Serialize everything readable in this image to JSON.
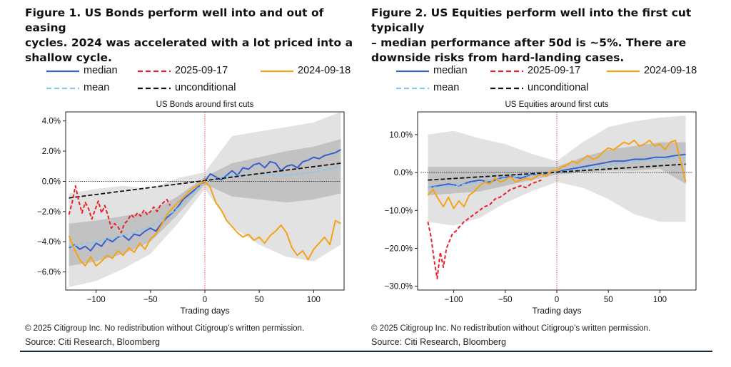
{
  "figures": [
    {
      "title_lines": [
        "Figure 1. US Bonds perform well into and out of easing",
        "cycles. 2024 was accelerated with a lot priced into a",
        "shallow cycle."
      ],
      "legend": [
        {
          "label": "median",
          "color": "#3a5fcd",
          "dash": "solid"
        },
        {
          "label": "2025-09-17",
          "color": "#e8202a",
          "dash": "dashed"
        },
        {
          "label": "2024-09-18",
          "color": "#f5a316",
          "dash": "solid"
        },
        {
          "label": "mean",
          "color": "#87c8ef",
          "dash": "dashed"
        },
        {
          "label": "unconditional",
          "color": "#111111",
          "dash": "dashed"
        }
      ],
      "copyright": "© 2025 Citigroup Inc. No redistribution without Citigroup’s written permission.",
      "source": "Source: Citi Research, Bloomberg"
    },
    {
      "title_lines": [
        "Figure 2. US Equities perform well into the first cut typically",
        "– median performance after 50d is ~5%. There are",
        "downside risks from hard-landing cases."
      ],
      "legend": [
        {
          "label": "median",
          "color": "#3a5fcd",
          "dash": "solid"
        },
        {
          "label": "2025-09-17",
          "color": "#e8202a",
          "dash": "dashed"
        },
        {
          "label": "2024-09-18",
          "color": "#f5a316",
          "dash": "solid"
        },
        {
          "label": "mean",
          "color": "#87c8ef",
          "dash": "dashed"
        },
        {
          "label": "unconditional",
          "color": "#111111",
          "dash": "dashed"
        }
      ],
      "copyright": "© 2025 Citigroup Inc. No redistribution without Citigroup’s written permission.",
      "source": "Source: Citi Research, Bloomberg"
    }
  ],
  "chart_data": [
    {
      "type": "line",
      "title": "US Bonds around first cuts",
      "xlabel": "Trading days",
      "ylabel": "",
      "xlim": [
        -128,
        128
      ],
      "ylim": [
        -7.2,
        4.6
      ],
      "xticks": [
        -100,
        -50,
        0,
        50,
        100
      ],
      "xtick_labels": [
        "−100",
        "−50",
        "0",
        "50",
        "100"
      ],
      "yticks": [
        4,
        2,
        0,
        -2,
        -4,
        -6
      ],
      "ytick_labels": [
        "4.0%",
        "2.0%",
        "0.0%",
        "−2.0%",
        "−4.0%",
        "−6.0%"
      ],
      "vline_x": 0,
      "zero_line": true,
      "outer_band": {
        "x": [
          -125,
          -100,
          -75,
          -50,
          -25,
          0,
          25,
          50,
          75,
          100,
          125
        ],
        "lower": [
          -7.0,
          -6.6,
          -5.8,
          -4.8,
          -2.8,
          -0.5,
          -3.0,
          -4.2,
          -5.0,
          -5.3,
          -4.2
        ],
        "upper": [
          -0.8,
          -0.5,
          -0.3,
          -0.5,
          0.2,
          0.6,
          3.0,
          3.3,
          3.6,
          3.9,
          4.6
        ]
      },
      "inner_band": {
        "x": [
          -125,
          -100,
          -75,
          -50,
          -25,
          0,
          25,
          50,
          75,
          100,
          125
        ],
        "lower": [
          -5.6,
          -5.3,
          -4.8,
          -4.0,
          -2.2,
          -0.2,
          -1.0,
          -1.2,
          -1.4,
          -1.2,
          -0.8
        ],
        "upper": [
          -2.8,
          -2.6,
          -2.3,
          -2.0,
          -1.0,
          0.3,
          1.2,
          1.6,
          2.0,
          2.3,
          2.8
        ]
      },
      "series": [
        {
          "name": "median",
          "color": "#3a5fcd",
          "dash": "solid",
          "x": [
            -125,
            -120,
            -115,
            -110,
            -105,
            -100,
            -95,
            -90,
            -85,
            -80,
            -75,
            -70,
            -65,
            -60,
            -55,
            -50,
            -45,
            -40,
            -35,
            -30,
            -25,
            -20,
            -15,
            -10,
            -5,
            0,
            5,
            10,
            15,
            20,
            25,
            30,
            35,
            40,
            45,
            50,
            55,
            60,
            65,
            70,
            75,
            80,
            85,
            90,
            95,
            100,
            105,
            110,
            115,
            120,
            125
          ],
          "y": [
            -4.4,
            -4.2,
            -4.5,
            -4.3,
            -4.6,
            -4.1,
            -4.3,
            -3.8,
            -4.0,
            -3.7,
            -3.6,
            -3.9,
            -3.5,
            -3.6,
            -3.3,
            -3.1,
            -3.3,
            -2.8,
            -2.4,
            -2.1,
            -1.7,
            -1.2,
            -0.9,
            -0.6,
            -0.3,
            0.0,
            0.5,
            0.3,
            0.1,
            0.4,
            0.7,
            0.4,
            0.9,
            0.8,
            1.1,
            1.2,
            0.9,
            1.3,
            1.2,
            0.7,
            1.0,
            1.1,
            0.9,
            1.3,
            1.4,
            1.6,
            1.5,
            1.7,
            1.8,
            1.9,
            2.1
          ]
        },
        {
          "name": "mean",
          "color": "#87c8ef",
          "dash": "dashed",
          "x": [
            -125,
            -100,
            -75,
            -50,
            -25,
            0,
            25,
            50,
            75,
            100,
            125
          ],
          "y": [
            -4.3,
            -4.0,
            -3.6,
            -3.0,
            -1.8,
            0.0,
            0.4,
            0.5,
            0.4,
            0.6,
            1.0
          ]
        },
        {
          "name": "unconditional",
          "color": "#111111",
          "dash": "dashed",
          "x": [
            -125,
            125
          ],
          "y": [
            -1.1,
            1.2
          ]
        },
        {
          "name": "2025-09-17",
          "color": "#e8202a",
          "dash": "dashed",
          "x": [
            -125,
            -122,
            -119,
            -116,
            -113,
            -110,
            -107,
            -104,
            -101,
            -98,
            -95,
            -92,
            -89,
            -86,
            -83,
            -80,
            -77,
            -74,
            -71,
            -68,
            -65,
            -62,
            -59,
            -56,
            -53,
            -50,
            -47,
            -44,
            -41,
            -38,
            -35,
            -32
          ],
          "y": [
            -2.2,
            -1.4,
            -0.3,
            -1.3,
            -2.1,
            -1.4,
            -1.8,
            -2.5,
            -1.9,
            -1.3,
            -2.1,
            -1.6,
            -2.3,
            -3.1,
            -2.8,
            -3.0,
            -3.4,
            -2.8,
            -2.6,
            -2.2,
            -2.4,
            -2.1,
            -2.3,
            -1.9,
            -2.2,
            -2.0,
            -1.7,
            -2.0,
            -1.6,
            -1.4,
            -1.2,
            -1.6
          ]
        },
        {
          "name": "2024-09-18",
          "color": "#f5a316",
          "dash": "solid",
          "x": [
            -125,
            -120,
            -115,
            -110,
            -105,
            -100,
            -95,
            -90,
            -85,
            -80,
            -75,
            -70,
            -65,
            -60,
            -55,
            -50,
            -45,
            -40,
            -35,
            -30,
            -25,
            -20,
            -15,
            -10,
            -5,
            0,
            5,
            10,
            15,
            20,
            25,
            30,
            35,
            40,
            45,
            50,
            55,
            60,
            65,
            70,
            75,
            80,
            85,
            90,
            95,
            100,
            105,
            110,
            115,
            120,
            125
          ],
          "y": [
            -3.6,
            -4.5,
            -5.2,
            -5.6,
            -5.0,
            -5.6,
            -5.3,
            -4.9,
            -5.1,
            -4.6,
            -4.9,
            -4.4,
            -4.7,
            -4.1,
            -4.5,
            -3.8,
            -3.5,
            -2.9,
            -2.2,
            -1.8,
            -1.4,
            -1.1,
            -0.7,
            -0.4,
            -0.2,
            0.0,
            -0.4,
            -1.4,
            -1.9,
            -2.6,
            -3.0,
            -3.4,
            -3.7,
            -3.5,
            -3.9,
            -3.7,
            -4.1,
            -3.6,
            -3.3,
            -2.9,
            -3.4,
            -4.4,
            -4.9,
            -4.6,
            -5.2,
            -4.5,
            -4.1,
            -3.7,
            -4.2,
            -2.6,
            -2.8
          ]
        }
      ]
    },
    {
      "type": "line",
      "title": "US Equities around first cuts",
      "xlabel": "Trading days",
      "ylabel": "",
      "xlim": [
        -135,
        135
      ],
      "ylim": [
        -31,
        16
      ],
      "xticks": [
        -100,
        -50,
        0,
        50,
        100
      ],
      "xtick_labels": [
        "−100",
        "−50",
        "0",
        "50",
        "100"
      ],
      "yticks": [
        10,
        0,
        -10,
        -20,
        -30
      ],
      "ytick_labels": [
        "10.0%",
        "0.0%",
        "−10.0%",
        "−20.0%",
        "−30.0%"
      ],
      "vline_x": 0,
      "zero_line": true,
      "outer_band": {
        "x": [
          -125,
          -100,
          -75,
          -50,
          -25,
          0,
          25,
          50,
          75,
          100,
          125
        ],
        "lower": [
          -13.0,
          -14.0,
          -12.0,
          -8.0,
          -5.0,
          -2.5,
          -4.0,
          -7.0,
          -11.0,
          -13.0,
          -13.0
        ],
        "upper": [
          10.0,
          11.0,
          9.0,
          7.5,
          5.0,
          3.0,
          8.0,
          12.0,
          13.5,
          14.5,
          15.0
        ]
      },
      "inner_band": {
        "x": [
          -125,
          -100,
          -75,
          -50,
          -25,
          0,
          25,
          50,
          75,
          100,
          125
        ],
        "lower": [
          -6.0,
          -5.5,
          -5.0,
          -3.5,
          -2.0,
          -0.5,
          0.0,
          0.5,
          0.5,
          1.0,
          -3.0
        ],
        "upper": [
          1.5,
          1.5,
          1.5,
          1.5,
          1.5,
          1.5,
          4.0,
          6.0,
          7.0,
          8.0,
          8.0
        ]
      },
      "series": [
        {
          "name": "median",
          "color": "#3a5fcd",
          "dash": "solid",
          "x": [
            -125,
            -115,
            -105,
            -95,
            -85,
            -75,
            -65,
            -55,
            -45,
            -35,
            -25,
            -15,
            -5,
            0,
            5,
            15,
            25,
            35,
            45,
            55,
            65,
            75,
            85,
            95,
            105,
            115,
            125
          ],
          "y": [
            -4.0,
            -3.5,
            -3.0,
            -3.5,
            -2.5,
            -2.0,
            -2.5,
            -1.5,
            -1.0,
            -1.5,
            -0.5,
            -0.5,
            0.0,
            0.0,
            0.5,
            1.0,
            1.5,
            2.0,
            2.5,
            3.0,
            3.0,
            3.5,
            3.5,
            4.0,
            4.0,
            4.5,
            4.8
          ]
        },
        {
          "name": "mean",
          "color": "#87c8ef",
          "dash": "dashed",
          "x": [
            -125,
            -100,
            -75,
            -50,
            -25,
            0,
            25,
            50,
            75,
            100,
            125
          ],
          "y": [
            -4.0,
            -3.5,
            -2.5,
            -1.5,
            -0.5,
            0.0,
            1.0,
            2.0,
            3.0,
            3.5,
            4.0
          ]
        },
        {
          "name": "unconditional",
          "color": "#111111",
          "dash": "dashed",
          "x": [
            -125,
            125
          ],
          "y": [
            -2.0,
            2.2
          ]
        },
        {
          "name": "2025-09-17",
          "color": "#e8202a",
          "dash": "dashed",
          "x": [
            -125,
            -122,
            -119,
            -116,
            -113,
            -110,
            -107,
            -104,
            -101,
            -98,
            -95,
            -90,
            -85,
            -80,
            -75,
            -70,
            -65,
            -60,
            -55,
            -50,
            -45,
            -40,
            -35,
            -30,
            -25,
            -20,
            -15
          ],
          "y": [
            -13.0,
            -17.0,
            -23.0,
            -28.0,
            -21.0,
            -25.0,
            -20.0,
            -18.0,
            -16.0,
            -15.5,
            -14.5,
            -13.0,
            -12.0,
            -11.0,
            -10.0,
            -9.0,
            -8.5,
            -7.0,
            -6.5,
            -5.5,
            -4.5,
            -4.0,
            -3.5,
            -4.0,
            -3.0,
            -2.5,
            -2.0
          ]
        },
        {
          "name": "2024-09-18",
          "color": "#f5a316",
          "dash": "solid",
          "x": [
            -125,
            -120,
            -115,
            -110,
            -105,
            -100,
            -95,
            -90,
            -85,
            -80,
            -75,
            -70,
            -65,
            -60,
            -55,
            -50,
            -45,
            -40,
            -35,
            -30,
            -25,
            -20,
            -15,
            -10,
            -5,
            0,
            5,
            10,
            15,
            20,
            25,
            30,
            35,
            40,
            45,
            50,
            55,
            60,
            65,
            70,
            75,
            80,
            85,
            90,
            95,
            100,
            105,
            110,
            115,
            120,
            125
          ],
          "y": [
            -6.0,
            -4.5,
            -7.0,
            -9.0,
            -6.5,
            -9.5,
            -7.5,
            -9.0,
            -6.0,
            -5.0,
            -3.5,
            -2.5,
            -3.0,
            -1.5,
            -2.5,
            -2.0,
            -1.0,
            -2.5,
            -2.0,
            -1.5,
            -2.0,
            -1.0,
            -0.5,
            -1.0,
            0.5,
            0.5,
            1.5,
            2.0,
            3.0,
            2.5,
            3.5,
            4.5,
            3.5,
            4.0,
            5.5,
            6.5,
            6.0,
            7.0,
            8.0,
            7.5,
            8.5,
            7.0,
            7.5,
            8.5,
            7.0,
            7.5,
            6.0,
            8.0,
            8.5,
            3.0,
            -2.5
          ]
        }
      ]
    }
  ]
}
